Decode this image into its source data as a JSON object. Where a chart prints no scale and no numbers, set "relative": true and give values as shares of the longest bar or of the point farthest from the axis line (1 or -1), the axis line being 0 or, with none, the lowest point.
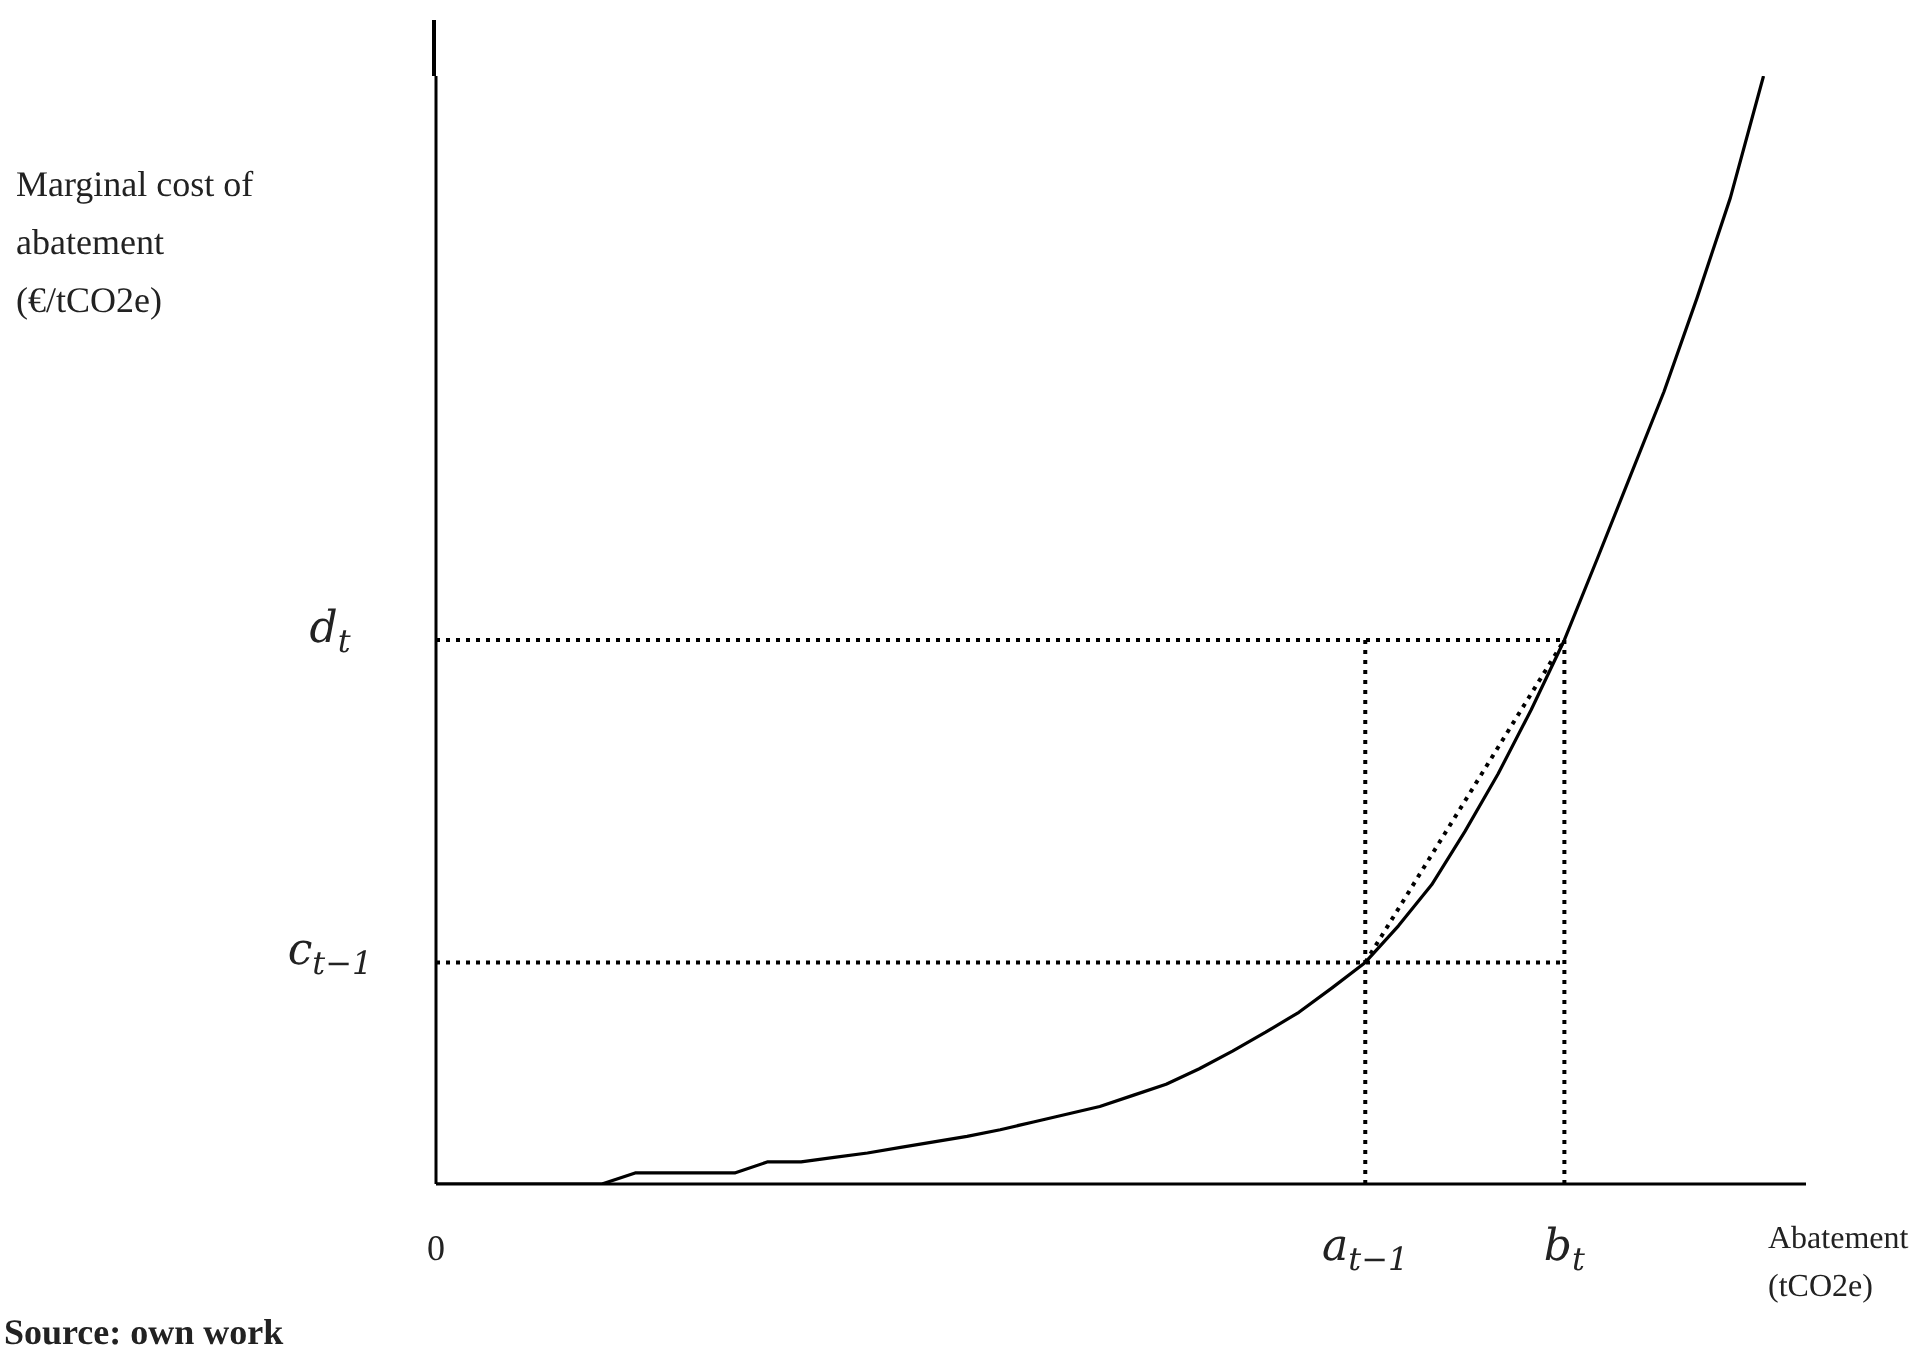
{
  "chart_data": {
    "type": "line",
    "relative": true,
    "xlabel": "Abatement (tCO2e)",
    "ylabel": "Marginal cost of abatement (€/tCO2e)",
    "annotations": [
      "Source: own work",
      {
        "text": "c$_{t−1}$",
        "x": "0",
        "y": 0.2
      },
      {
        "text": "d$_{t}$",
        "x": "0",
        "y": 0.491
      }
    ],
    "categories": [
      "0",
      null,
      null,
      null,
      null,
      null,
      null,
      null,
      null,
      null,
      null,
      null,
      null,
      null,
      null,
      null,
      null,
      null,
      null,
      null,
      null,
      null,
      null,
      null,
      null,
      null,
      null,
      null,
      "a$_{t−1}$",
      null,
      null,
      null,
      null,
      null,
      "b$_{t}$",
      null,
      null,
      null,
      null,
      null,
      null
    ],
    "marker": "none",
    "series": [
      {
        "color": "#000000",
        "line_style": "solid",
        "values": [
          0,
          0,
          0,
          0,
          0,
          0,
          0.01,
          0.01,
          0.01,
          0.01,
          0.02,
          0.02,
          0.024,
          0.028,
          0.033,
          0.038,
          0.043,
          0.049,
          0.056,
          0.063,
          0.07,
          0.08,
          0.09,
          0.104,
          0.12,
          0.137,
          0.155,
          0.177,
          0.2,
          0.233,
          0.27,
          0.318,
          0.37,
          0.428,
          0.491,
          0.565,
          0.64,
          0.715,
          0.8,
          0.89,
          1
        ]
      },
      {
        "color": "#000000",
        "line_style": "dotted",
        "x": [
          "0",
          "b$_{t}$"
        ],
        "values": [
          0.491,
          0.491
        ]
      },
      {
        "color": "#000000",
        "line_style": "dotted",
        "x": [
          "0",
          "b$_{t}$"
        ],
        "values": [
          0.2,
          0.2
        ]
      },
      {
        "color": "#000000",
        "line_style": "dotted",
        "x": [
          "a$_{t−1}$",
          "a$_{t−1}$"
        ],
        "values": [
          0,
          0.491
        ]
      },
      {
        "color": "#000000",
        "line_style": "dotted",
        "x": [
          "b$_{t}$",
          "b$_{t}$"
        ],
        "values": [
          0,
          0.491
        ]
      },
      {
        "color": "#000000",
        "line_style": "dotted",
        "x": [
          "a$_{t−1}$",
          "b$_{t}$"
        ],
        "values": [
          0.2,
          0.491
        ]
      }
    ]
  }
}
